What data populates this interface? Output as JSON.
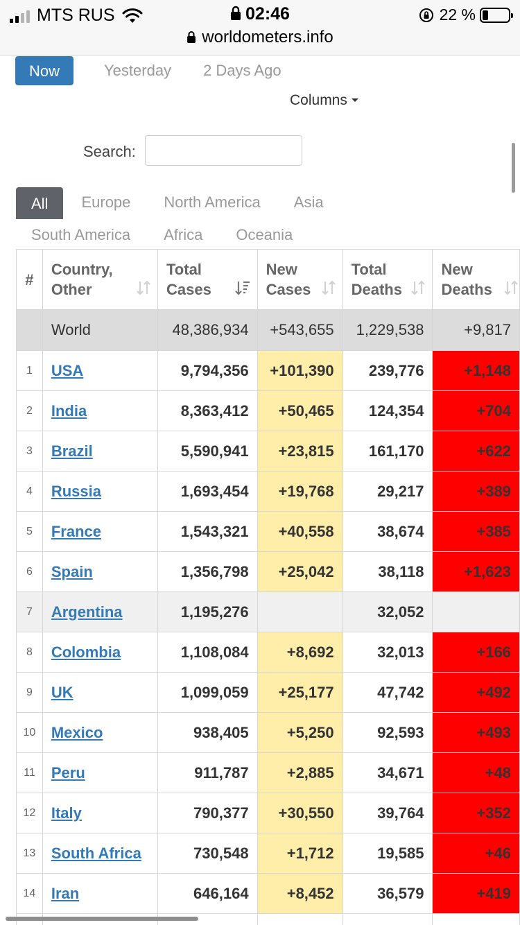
{
  "status_bar": {
    "carrier": "MTS RUS",
    "time": "02:46",
    "battery": "22 %",
    "url": "worldometers.info"
  },
  "day_tabs": [
    "Now",
    "Yesterday",
    "2 Days Ago"
  ],
  "columns_label": "Columns",
  "search": {
    "label": "Search:",
    "value": ""
  },
  "regions": {
    "row1": [
      "All",
      "Europe",
      "North America",
      "Asia"
    ],
    "row2": [
      "South America",
      "Africa",
      "Oceania"
    ]
  },
  "table": {
    "headers": {
      "rank": "#",
      "country": [
        "Country,",
        "Other"
      ],
      "total_cases": [
        "Total",
        "Cases"
      ],
      "new_cases": [
        "New",
        "Cases"
      ],
      "total_deaths": [
        "Total",
        "Deaths"
      ],
      "new_deaths": [
        "New",
        "Deaths"
      ]
    },
    "world": {
      "country": "World",
      "total_cases": "48,386,934",
      "new_cases": "+543,655",
      "total_deaths": "1,229,538",
      "new_deaths": "+9,817"
    },
    "rows": [
      {
        "rank": "1",
        "country": "USA",
        "total_cases": "9,794,356",
        "new_cases": "+101,390",
        "total_deaths": "239,776",
        "new_deaths": "+1,148"
      },
      {
        "rank": "2",
        "country": "India",
        "total_cases": "8,363,412",
        "new_cases": "+50,465",
        "total_deaths": "124,354",
        "new_deaths": "+704"
      },
      {
        "rank": "3",
        "country": "Brazil",
        "total_cases": "5,590,941",
        "new_cases": "+23,815",
        "total_deaths": "161,170",
        "new_deaths": "+622"
      },
      {
        "rank": "4",
        "country": "Russia",
        "total_cases": "1,693,454",
        "new_cases": "+19,768",
        "total_deaths": "29,217",
        "new_deaths": "+389"
      },
      {
        "rank": "5",
        "country": "France",
        "total_cases": "1,543,321",
        "new_cases": "+40,558",
        "total_deaths": "38,674",
        "new_deaths": "+385"
      },
      {
        "rank": "6",
        "country": "Spain",
        "total_cases": "1,356,798",
        "new_cases": "+25,042",
        "total_deaths": "38,118",
        "new_deaths": "+1,623"
      },
      {
        "rank": "7",
        "country": "Argentina",
        "total_cases": "1,195,276",
        "new_cases": "",
        "total_deaths": "32,052",
        "new_deaths": ""
      },
      {
        "rank": "8",
        "country": "Colombia",
        "total_cases": "1,108,084",
        "new_cases": "+8,692",
        "total_deaths": "32,013",
        "new_deaths": "+166"
      },
      {
        "rank": "9",
        "country": "UK",
        "total_cases": "1,099,059",
        "new_cases": "+25,177",
        "total_deaths": "47,742",
        "new_deaths": "+492"
      },
      {
        "rank": "10",
        "country": "Mexico",
        "total_cases": "938,405",
        "new_cases": "+5,250",
        "total_deaths": "92,593",
        "new_deaths": "+493"
      },
      {
        "rank": "11",
        "country": "Peru",
        "total_cases": "911,787",
        "new_cases": "+2,885",
        "total_deaths": "34,671",
        "new_deaths": "+48"
      },
      {
        "rank": "12",
        "country": "Italy",
        "total_cases": "790,377",
        "new_cases": "+30,550",
        "total_deaths": "39,764",
        "new_deaths": "+352"
      },
      {
        "rank": "13",
        "country": "South Africa",
        "total_cases": "730,548",
        "new_cases": "+1,712",
        "total_deaths": "19,585",
        "new_deaths": "+46"
      },
      {
        "rank": "14",
        "country": "Iran",
        "total_cases": "646,164",
        "new_cases": "+8,452",
        "total_deaths": "36,579",
        "new_deaths": "+419"
      },
      {
        "rank": "",
        "country": "",
        "total_cases": "",
        "new_cases": "",
        "total_deaths": "",
        "new_deaths": ""
      }
    ]
  },
  "colors": {
    "accent": "#337ab7",
    "new_cases_bg": "#ffeeaa",
    "new_deaths_bg": "#ff0000",
    "active_tab_bg": "#5f6369"
  }
}
